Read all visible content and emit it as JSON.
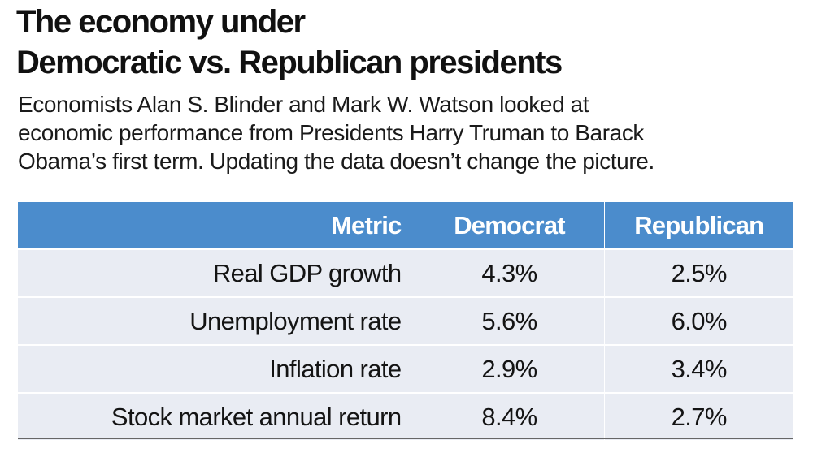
{
  "title": {
    "line1": "The economy under",
    "line2": "Democratic vs. Republican presidents"
  },
  "subtitle": {
    "line1": "Economists Alan S. Blinder and Mark W. Watson looked at",
    "line2": "economic performance from Presidents Harry Truman to Barack",
    "line3": "Obama’s first term. Updating the data doesn’t change the picture."
  },
  "colors": {
    "header_background": "#4b8ccc",
    "row_background": "#e9ecf3"
  },
  "table": {
    "headers": [
      "Metric",
      "Democrat",
      "Republican"
    ],
    "rows": [
      {
        "metric": "Real GDP growth",
        "democrat": "4.3%",
        "republican": "2.5%"
      },
      {
        "metric": "Unemployment rate",
        "democrat": "5.6%",
        "republican": "6.0%"
      },
      {
        "metric": "Inflation rate",
        "democrat": "2.9%",
        "republican": "3.4%"
      },
      {
        "metric": "Stock market annual return",
        "democrat": "8.4%",
        "republican": "2.7%"
      }
    ]
  },
  "chart_data": {
    "type": "table",
    "title": "The economy under Democratic vs. Republican presidents",
    "columns": [
      "Metric",
      "Democrat",
      "Republican"
    ],
    "categories": [
      "Real GDP growth",
      "Unemployment rate",
      "Inflation rate",
      "Stock market annual return"
    ],
    "series": [
      {
        "name": "Democrat",
        "values": [
          4.3,
          5.6,
          2.9,
          8.4
        ]
      },
      {
        "name": "Republican",
        "values": [
          2.5,
          6.0,
          3.4,
          2.7
        ]
      }
    ],
    "unit": "%"
  }
}
